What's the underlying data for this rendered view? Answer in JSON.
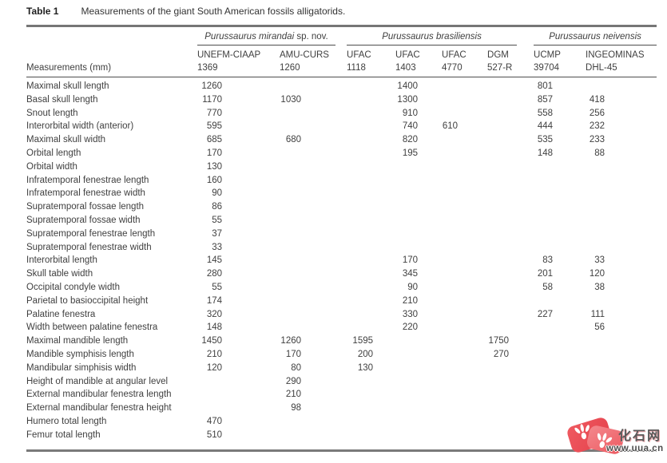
{
  "page": {
    "title_label": "Table 1",
    "title_text": "Measurements of the giant South American fossils alligatorids."
  },
  "table": {
    "row_header": "Measurements (mm)",
    "groups": [
      {
        "italic": "Purussaurus mirandai",
        "regular": " sp. nov.",
        "colspan": 2
      },
      {
        "italic": "Purussaurus brasiliensis",
        "regular": "",
        "colspan": 4
      },
      {
        "italic": "Purussaurus neivensis",
        "regular": "",
        "colspan": 2
      }
    ],
    "columns": [
      {
        "line1": "UNEFM-CIAAP",
        "line2": "1369"
      },
      {
        "line1": "AMU-CURS",
        "line2": "1260"
      },
      {
        "line1": "UFAC",
        "line2": "1118"
      },
      {
        "line1": "UFAC",
        "line2": "1403"
      },
      {
        "line1": "UFAC",
        "line2": "4770"
      },
      {
        "line1": "DGM",
        "line2": "527-R"
      },
      {
        "line1": "UCMP",
        "line2": "39704"
      },
      {
        "line1": "INGEOMINAS",
        "line2": "DHL-45"
      }
    ],
    "rows": [
      {
        "label": "Maximal skull length",
        "values": [
          "1260",
          "",
          "",
          "1400",
          "",
          "",
          "801",
          ""
        ]
      },
      {
        "label": "Basal skull length",
        "values": [
          "1170",
          "1030",
          "",
          "1300",
          "",
          "",
          "857",
          "418"
        ]
      },
      {
        "label": "Snout length",
        "values": [
          "770",
          "",
          "",
          "910",
          "",
          "",
          "558",
          "256"
        ]
      },
      {
        "label": "Interorbital width (anterior)",
        "values": [
          "595",
          "",
          "",
          "740",
          "610",
          "",
          "444",
          "232"
        ]
      },
      {
        "label": "Maximal skull width",
        "values": [
          "685",
          "680",
          "",
          "820",
          "",
          "",
          "535",
          "233"
        ]
      },
      {
        "label": "Orbital length",
        "values": [
          "170",
          "",
          "",
          "195",
          "",
          "",
          "148",
          "88"
        ]
      },
      {
        "label": "Orbital width",
        "values": [
          "130",
          "",
          "",
          "",
          "",
          "",
          "",
          ""
        ]
      },
      {
        "label": "Infratemporal fenestrae length",
        "values": [
          "160",
          "",
          "",
          "",
          "",
          "",
          "",
          ""
        ]
      },
      {
        "label": "Infratemporal fenestrae width",
        "values": [
          "90",
          "",
          "",
          "",
          "",
          "",
          "",
          ""
        ]
      },
      {
        "label": "Supratemporal fossae length",
        "values": [
          "86",
          "",
          "",
          "",
          "",
          "",
          "",
          ""
        ]
      },
      {
        "label": "Supratemporal fossae width",
        "values": [
          "55",
          "",
          "",
          "",
          "",
          "",
          "",
          ""
        ]
      },
      {
        "label": "Supratemporal fenestrae length",
        "values": [
          "37",
          "",
          "",
          "",
          "",
          "",
          "",
          ""
        ]
      },
      {
        "label": "Supratemporal fenestrae width",
        "values": [
          "33",
          "",
          "",
          "",
          "",
          "",
          "",
          ""
        ]
      },
      {
        "label": "Interorbital length",
        "values": [
          "145",
          "",
          "",
          "170",
          "",
          "",
          "83",
          "33"
        ]
      },
      {
        "label": "Skull table width",
        "values": [
          "280",
          "",
          "",
          "345",
          "",
          "",
          "201",
          "120"
        ]
      },
      {
        "label": "Occipital condyle width",
        "values": [
          "55",
          "",
          "",
          "90",
          "",
          "",
          "58",
          "38"
        ]
      },
      {
        "label": "Parietal to basioccipital height",
        "values": [
          "174",
          "",
          "",
          "210",
          "",
          "",
          "",
          ""
        ]
      },
      {
        "label": "Palatine fenestra",
        "values": [
          "320",
          "",
          "",
          "330",
          "",
          "",
          "227",
          "111"
        ]
      },
      {
        "label": "Width between palatine fenestra",
        "values": [
          "148",
          "",
          "",
          "220",
          "",
          "",
          "",
          "56"
        ]
      },
      {
        "label": "Maximal mandible length",
        "values": [
          "1450",
          "1260",
          "1595",
          "",
          "",
          "1750",
          "",
          ""
        ]
      },
      {
        "label": "Mandible symphisis length",
        "values": [
          "210",
          "170",
          "200",
          "",
          "",
          "270",
          "",
          ""
        ]
      },
      {
        "label": "Mandibular simphisis width",
        "values": [
          "120",
          "80",
          "130",
          "",
          "",
          "",
          "",
          ""
        ]
      },
      {
        "label": "Height of mandible at angular level",
        "values": [
          "",
          "290",
          "",
          "",
          "",
          "",
          "",
          ""
        ]
      },
      {
        "label": "External mandibular fenestra length",
        "values": [
          "",
          "210",
          "",
          "",
          "",
          "",
          "",
          ""
        ]
      },
      {
        "label": "External mandibular fenestra height",
        "values": [
          "",
          "98",
          "",
          "",
          "",
          "",
          "",
          ""
        ]
      },
      {
        "label": "Humero total length",
        "values": [
          "470",
          "",
          "",
          "",
          "",
          "",
          "",
          ""
        ]
      },
      {
        "label": "Femur total length",
        "values": [
          "510",
          "",
          "",
          "",
          "",
          "",
          "",
          ""
        ]
      }
    ]
  },
  "watermark": {
    "site_name": "化石网",
    "site_url": "www.uua.cn",
    "logo_color": "#e8474f"
  },
  "colors": {
    "text": "#3f3f3f",
    "rule_thick": "#767676",
    "rule_thin": "#4e4e4e",
    "watermark_red": "#e8474f"
  }
}
